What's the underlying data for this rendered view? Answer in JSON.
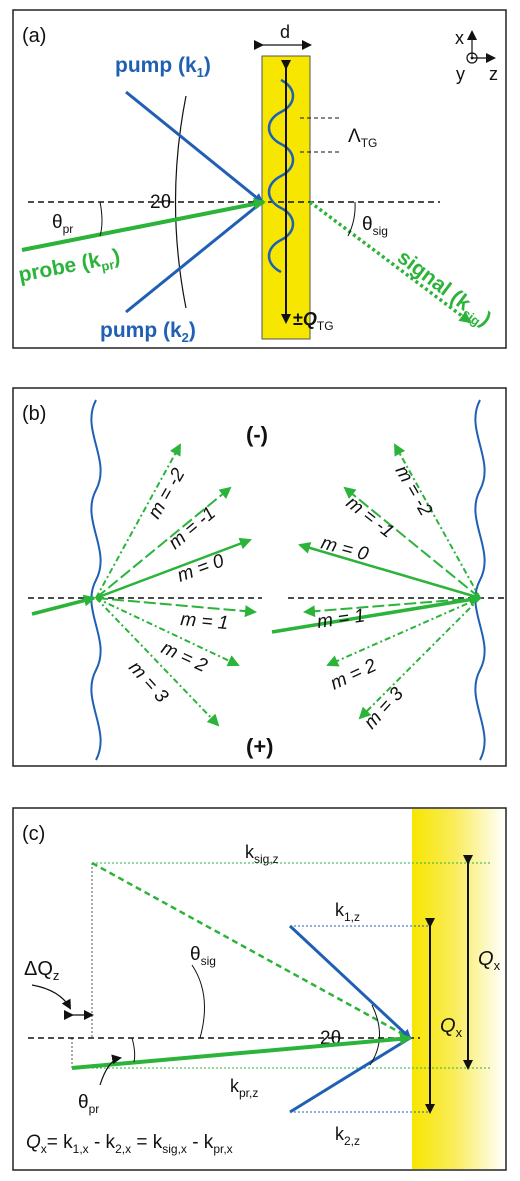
{
  "panel_a": {
    "label": "(a)",
    "d_label": "d",
    "axes": {
      "x": "x",
      "y": "y",
      "z": "z"
    },
    "pump1": {
      "text": "pump (k",
      "sub": "1",
      "close": ")"
    },
    "pump2": {
      "text": "pump (k",
      "sub": "2",
      "close": ")"
    },
    "probe": {
      "text": "probe (k",
      "sub": "pr",
      "close": ")"
    },
    "signal": {
      "text": "signal (k",
      "sub": "sig",
      "close": ")"
    },
    "two_theta": "2θ",
    "theta_pr": {
      "main": "θ",
      "sub": "pr"
    },
    "theta_sig": {
      "main": "θ",
      "sub": "sig"
    },
    "lambda_tg": {
      "main": "Λ",
      "sub": "TG"
    },
    "q_tg": {
      "prefix": "±",
      "main": "Q",
      "sub": "TG"
    }
  },
  "panel_b": {
    "label": "(b)",
    "minus": "(-)",
    "plus": "(+)",
    "left_orders": [
      "m = -2",
      "m = -1",
      "m = 0",
      "m = 1",
      "m = 2",
      "m = 3"
    ],
    "right_orders": [
      "m = -2",
      "m = -1",
      "m = 0",
      "m = 1",
      "m = 2",
      "m = 3"
    ]
  },
  "panel_c": {
    "label": "(c)",
    "k_sig_z": {
      "main": "k",
      "sub": "sig,z"
    },
    "k_1z": {
      "main": "k",
      "sub": "1,z"
    },
    "k_2z": {
      "main": "k",
      "sub": "2,z"
    },
    "k_prz": {
      "main": "k",
      "sub": "pr,z"
    },
    "delta_qz": {
      "main": "ΔQ",
      "sub": "z"
    },
    "theta_sig": {
      "main": "θ",
      "sub": "sig"
    },
    "theta_pr": {
      "main": "θ",
      "sub": "pr"
    },
    "two_theta": "2θ",
    "qx": {
      "main": "Q",
      "sub": "x"
    },
    "equation": {
      "q": "Q",
      "qsub": "x",
      "eq": "= k",
      "s1": "1,x",
      "m1": " - k",
      "s2": "2,x",
      "eq2": " = k",
      "s3": "sig,x",
      "m2": " - k",
      "s4": "pr,x"
    }
  },
  "colors": {
    "pump": "#1f5fb4",
    "probe": "#2bb33a",
    "sample": "#f7e600"
  }
}
